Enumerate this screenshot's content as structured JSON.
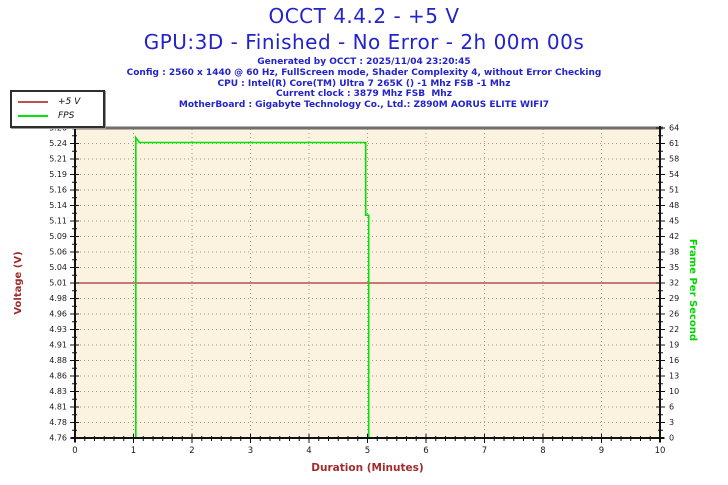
{
  "title": {
    "line1": "OCCT 4.4.2 - +5 V",
    "line2": "GPU:3D - Finished - No Error - 2h 00m 00s"
  },
  "info_lines": [
    "Generated by OCCT : 2025/11/04 23:20:45",
    "Config : 2560 x 1440 @ 60 Hz, FullScreen mode, Shader Complexity 4, without Error Checking",
    "CPU : Intel(R) Core(TM) Ultra 7 265K () -1 Mhz FSB -1 Mhz",
    "Current clock : 3879 Mhz FSB  Mhz",
    "MotherBoard : Gigabyte Technology Co., Ltd.: Z890M AORUS ELITE WIFI7"
  ],
  "legend": {
    "items": [
      {
        "label": "+5 V",
        "color": "#c05050"
      },
      {
        "label": "FPS",
        "color": "#00e400"
      }
    ]
  },
  "colors": {
    "title_blue": "#2323cc",
    "axis_dark_red": "#a02c2c",
    "axis_green": "#00d500",
    "voltage_line": "#b03030",
    "fps_line": "#00e400",
    "plot_bg": "#fbf2df",
    "grid": "#9a9a9a",
    "tick_label": "#1a1a1a",
    "border_top": "#6e6e6e",
    "axis_line": "#111111"
  },
  "chart_data": {
    "type": "line",
    "title": "OCCT 4.4.2 - +5 V",
    "xlabel": "Duration (Minutes)",
    "ylabel_left": "Voltage (V)",
    "ylabel_right": "Frame Per Second",
    "x_range": [
      0,
      10
    ],
    "x_tick_labels": [
      "0",
      "1",
      "2",
      "3",
      "4",
      "5",
      "6",
      "7",
      "8",
      "9",
      "10"
    ],
    "x_minor_per_major": 5,
    "y_left_range": [
      4.76,
      5.26
    ],
    "y_left_tick_labels": [
      "5.26",
      "5.24",
      "5.21",
      "5.19",
      "5.16",
      "5.14",
      "5.11",
      "5.09",
      "5.06",
      "5.04",
      "5.01",
      "4.98",
      "4.96",
      "4.93",
      "4.91",
      "4.88",
      "4.86",
      "4.83",
      "4.81",
      "4.78",
      "4.76"
    ],
    "y_right_range": [
      0,
      64
    ],
    "y_right_tick_labels": [
      "64",
      "61",
      "58",
      "54",
      "51",
      "48",
      "45",
      "42",
      "38",
      "35",
      "32",
      "29",
      "26",
      "22",
      "19",
      "16",
      "13",
      "10",
      "6",
      "3",
      "0"
    ],
    "grid": true,
    "legend_position": "top-left",
    "series": [
      {
        "name": "+5 V",
        "axis": "left",
        "color": "#b03030",
        "points": [
          [
            0,
            5.01
          ],
          [
            10,
            5.01
          ]
        ]
      },
      {
        "name": "FPS",
        "axis": "right",
        "color": "#00e400",
        "points": [
          [
            0,
            0
          ],
          [
            1.04,
            0
          ],
          [
            1.04,
            62
          ],
          [
            1.1,
            61
          ],
          [
            4.97,
            61
          ],
          [
            4.97,
            46
          ],
          [
            5.02,
            46
          ],
          [
            5.02,
            0
          ],
          [
            10,
            0
          ]
        ]
      }
    ]
  }
}
